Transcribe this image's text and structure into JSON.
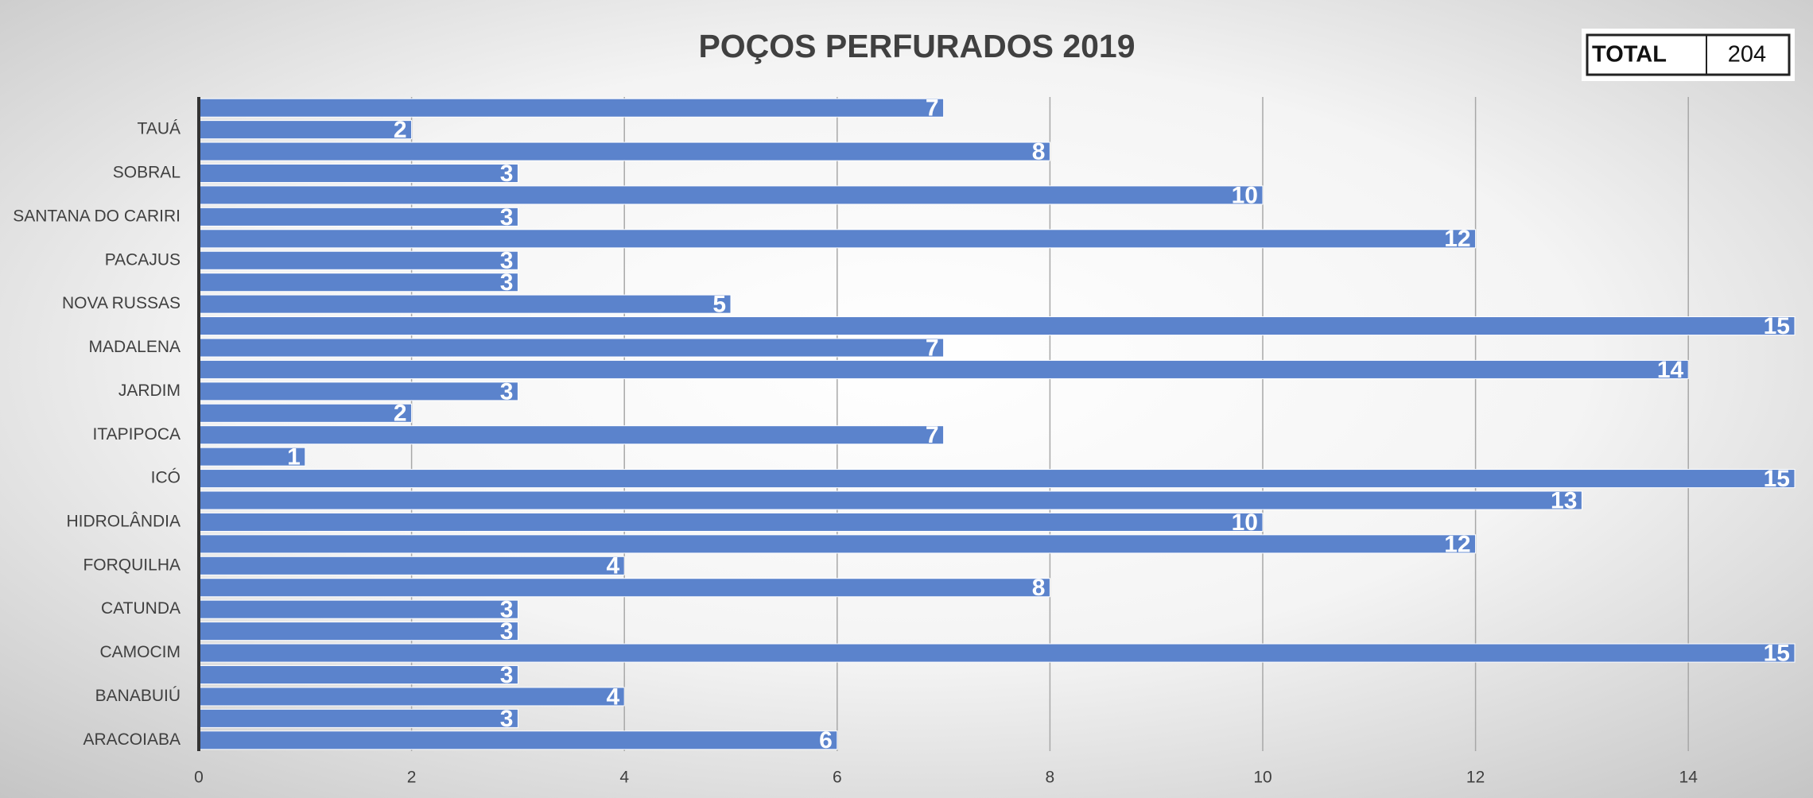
{
  "chart_data": {
    "type": "hbar",
    "title": "POÇOS PERFURADOS 2019",
    "total": {
      "label": "TOTAL",
      "value": 204
    },
    "categories": [
      null,
      "TAUÁ",
      null,
      "SOBRAL",
      null,
      "SANTANA DO CARIRI",
      null,
      "PACAJUS",
      null,
      "NOVA RUSSAS",
      null,
      "MADALENA",
      null,
      "JARDIM",
      null,
      "ITAPIPOCA",
      null,
      "ICÓ",
      null,
      "HIDROLÂNDIA",
      null,
      "FORQUILHA",
      null,
      "CATUNDA",
      null,
      "CAMOCIM",
      null,
      "BANABUIÚ",
      null,
      "ARACOIABA"
    ],
    "values": [
      7,
      2,
      8,
      3,
      10,
      3,
      12,
      3,
      3,
      5,
      15,
      7,
      14,
      3,
      2,
      7,
      1,
      15,
      13,
      10,
      12,
      4,
      8,
      3,
      3,
      15,
      3,
      4,
      3,
      6
    ],
    "color": "#5b83cc",
    "xlim": [
      0,
      15
    ],
    "xticks": [
      0,
      2,
      4,
      6,
      8,
      10,
      12,
      14
    ],
    "grid": true
  }
}
